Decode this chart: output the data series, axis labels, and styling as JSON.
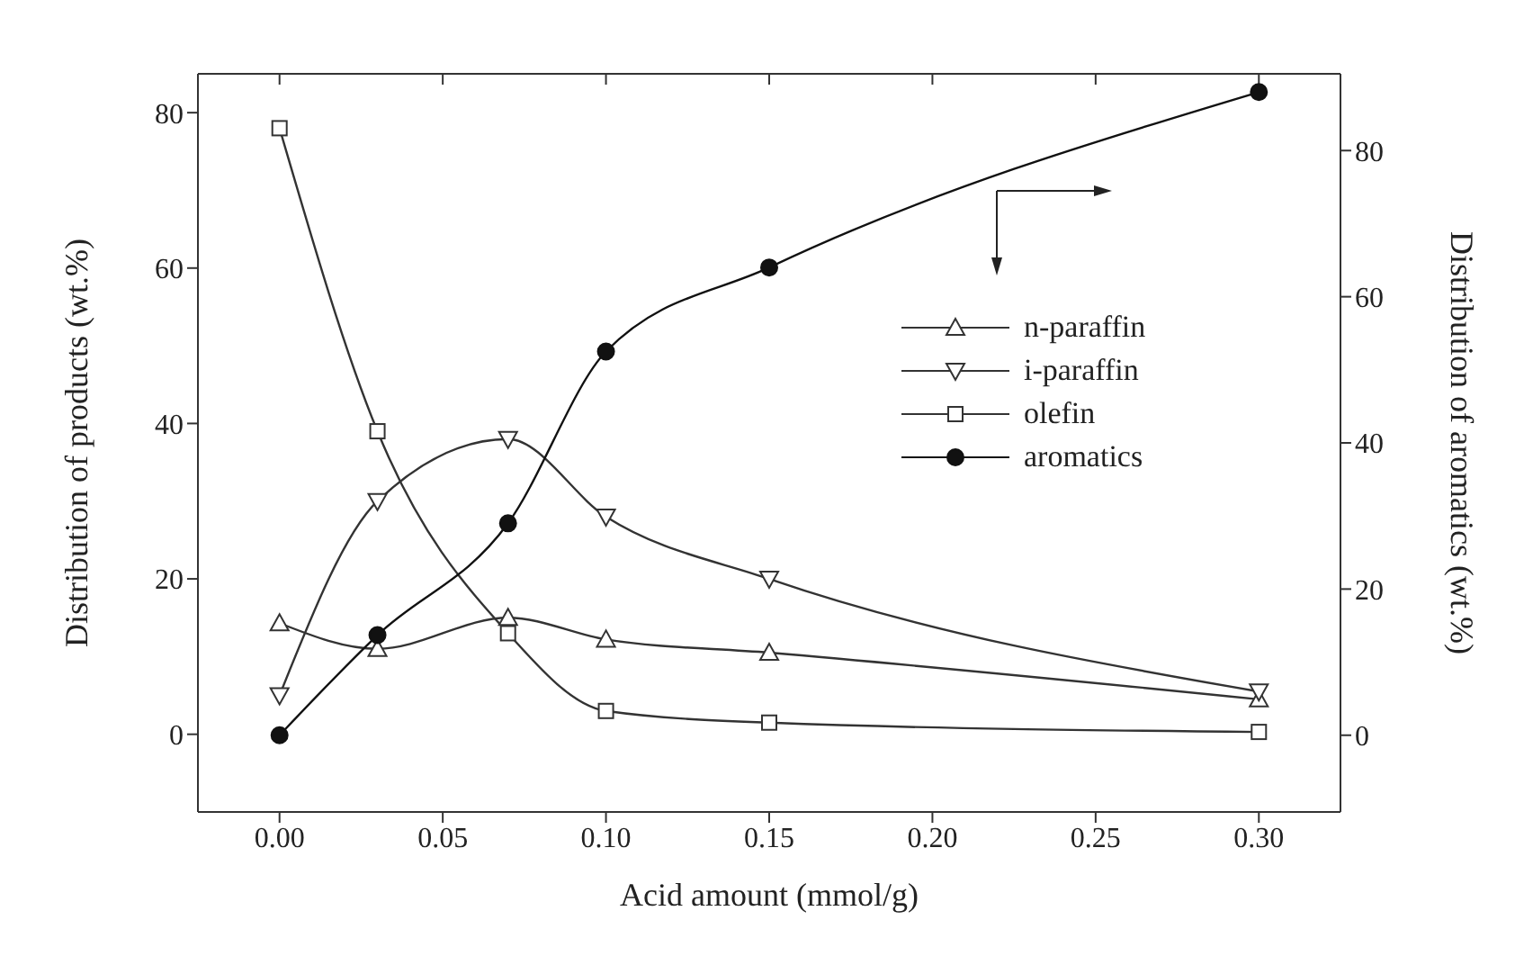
{
  "chart_data": {
    "type": "line",
    "xlabel": "Acid amount (mmol/g)",
    "ylabel": "Distribution of products (wt.%)",
    "y2label": "Distribution of aromatics (wt.%)",
    "x": [
      0,
      0.03,
      0.07,
      0.1,
      0.15,
      0.3
    ],
    "xlim": [
      -0.025,
      0.325
    ],
    "xticks": [
      {
        "value": 0,
        "label": "0.00"
      },
      {
        "value": 0.05,
        "label": "0.05"
      },
      {
        "value": 0.1,
        "label": "0.10"
      },
      {
        "value": 0.15,
        "label": "0.15"
      },
      {
        "value": 0.2,
        "label": "0.20"
      },
      {
        "value": 0.25,
        "label": "0.25"
      },
      {
        "value": 0.3,
        "label": "0.30"
      }
    ],
    "ylim": [
      -10,
      85
    ],
    "yticks": [
      0,
      20,
      40,
      60,
      80
    ],
    "y2lim": [
      -10.5,
      90.5
    ],
    "y2ticks": [
      0,
      20,
      40,
      60,
      80
    ],
    "legend": "right",
    "series": [
      {
        "name": "n-paraffin",
        "color": "#333333",
        "marker": "triangle",
        "values": [
          14.3,
          11,
          15,
          12.2,
          10.5,
          4.5
        ]
      },
      {
        "name": "i-paraffin",
        "color": "#333333",
        "marker": "triangle_down",
        "values": [
          5,
          30,
          38,
          28,
          20,
          5.5
        ]
      },
      {
        "name": "olefin",
        "color": "#333333",
        "marker": "square",
        "values": [
          78,
          39,
          13,
          3,
          1.5,
          0.3
        ]
      },
      {
        "name": "aromatics",
        "color": "#111111",
        "marker": "circle",
        "axis": "y2",
        "values": [
          0,
          13.7,
          29,
          52.5,
          64,
          88
        ]
      }
    ]
  }
}
